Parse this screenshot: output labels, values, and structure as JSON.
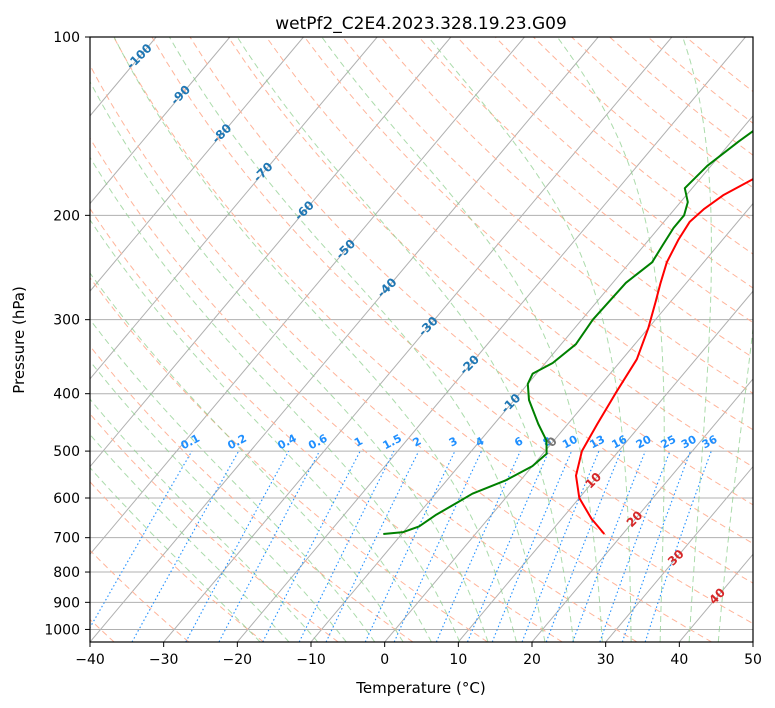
{
  "chart_data": {
    "type": "line",
    "title": "wetPf2_C2E4.2023.328.19.23.G09",
    "xlabel": "Temperature (°C)",
    "ylabel": "Pressure (hPa)",
    "xlim": [
      -40,
      50
    ],
    "ylim": [
      1050,
      100
    ],
    "y_scale": "log",
    "grid": true,
    "x_ticks": [
      "−40",
      "−30",
      "−20",
      "−10",
      "0",
      "10",
      "20",
      "30",
      "40",
      "50"
    ],
    "x_tick_values": [
      -40,
      -30,
      -20,
      -10,
      0,
      10,
      20,
      30,
      40,
      50
    ],
    "y_ticks": [
      "100",
      "200",
      "300",
      "400",
      "500",
      "600",
      "700",
      "800",
      "900",
      "1000"
    ],
    "y_tick_values": [
      100,
      200,
      300,
      400,
      500,
      600,
      700,
      800,
      900,
      1000
    ],
    "colors": {
      "temperature": "#ff0000",
      "dewpoint": "#008000",
      "grid": "#b0b0b0",
      "dry_adiabat": "#ffb49a",
      "moist_adiabat": "#8fcf8f",
      "mixing_ratio": "#1f8fff",
      "isotherm_label": "#1f77b4",
      "positive_isotherm_label": "#d62728"
    },
    "series": [
      {
        "color_key": "temperature",
        "points": [
          [
            17.5,
            690
          ],
          [
            14,
            650
          ],
          [
            10,
            600
          ],
          [
            7,
            550
          ],
          [
            5,
            500
          ],
          [
            4,
            450
          ],
          [
            3,
            400
          ],
          [
            2,
            350
          ],
          [
            0,
            310
          ],
          [
            -2,
            280
          ],
          [
            -3.5,
            260
          ],
          [
            -5,
            240
          ],
          [
            -6,
            220
          ],
          [
            -6.5,
            205
          ],
          [
            -6,
            195
          ],
          [
            -5,
            185
          ],
          [
            -2,
            170
          ],
          [
            2,
            155
          ],
          [
            5,
            140
          ],
          [
            8,
            125
          ],
          [
            12,
            115
          ],
          [
            15,
            108
          ],
          [
            19,
            100
          ]
        ]
      },
      {
        "color_key": "dewpoint",
        "points": [
          [
            -12.5,
            690
          ],
          [
            -10,
            685
          ],
          [
            -8.5,
            670
          ],
          [
            -7.5,
            640
          ],
          [
            -6,
            610
          ],
          [
            -5,
            590
          ],
          [
            -2,
            560
          ],
          [
            0,
            530
          ],
          [
            0.5,
            505
          ],
          [
            -1,
            480
          ],
          [
            -4,
            450
          ],
          [
            -8,
            410
          ],
          [
            -10,
            385
          ],
          [
            -10.5,
            370
          ],
          [
            -9,
            355
          ],
          [
            -8,
            330
          ],
          [
            -8.5,
            300
          ],
          [
            -8.2,
            260
          ],
          [
            -7,
            240
          ],
          [
            -7.5,
            225
          ],
          [
            -8,
            210
          ],
          [
            -8,
            200
          ],
          [
            -9,
            190
          ],
          [
            -11,
            180
          ],
          [
            -10.5,
            165
          ],
          [
            -9,
            150
          ],
          [
            -7,
            135
          ],
          [
            -5.5,
            120
          ],
          [
            -4,
            110
          ],
          [
            -2,
            100
          ]
        ]
      }
    ],
    "isotherm_labels": [
      "-100",
      "-90",
      "-80",
      "-70",
      "-60",
      "-50",
      "-40",
      "-30",
      "-20",
      "-10",
      "0",
      "10",
      "20",
      "30",
      "40"
    ],
    "mixing_ratio_labels": [
      "0.1",
      "0.2",
      "0.4",
      "0.6",
      "1",
      "1.5",
      "2",
      "3",
      "4",
      "6",
      "8",
      "10",
      "13",
      "16",
      "20",
      "25",
      "30",
      "36"
    ],
    "mixing_ratio_values": [
      0.1,
      0.2,
      0.4,
      0.6,
      1,
      1.5,
      2,
      3,
      4,
      6,
      8,
      10,
      13,
      16,
      20,
      25,
      30,
      36
    ]
  }
}
